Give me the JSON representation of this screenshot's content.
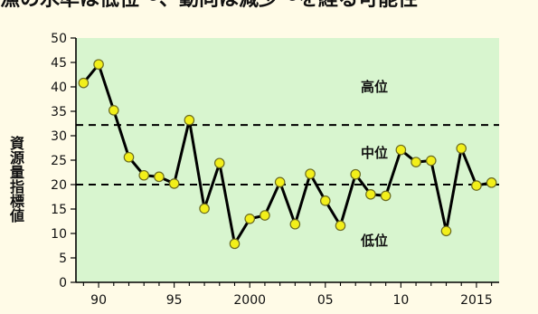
{
  "page": {
    "top_text": "漁の水準は低位～、動向は減少～を経る可能性"
  },
  "chart_data": {
    "type": "line",
    "title": "",
    "xlabel": "",
    "ylabel": "資源量指標値",
    "xlim": [
      1988.5,
      2016.5
    ],
    "ylim": [
      0,
      50
    ],
    "grid": false,
    "legend": "none",
    "x_ticks": [
      1990,
      1995,
      2000,
      2005,
      2010,
      2015
    ],
    "x_tick_labels": [
      "90",
      "95",
      "2000",
      "05",
      "10",
      "2015"
    ],
    "y_ticks": [
      0,
      5,
      10,
      15,
      20,
      25,
      30,
      35,
      40,
      45,
      50
    ],
    "y_tick_labels": [
      "0",
      "5",
      "10",
      "15",
      "20",
      "25",
      "30",
      "35",
      "40",
      "45",
      "50"
    ],
    "series": [
      {
        "x": [
          1989,
          1990,
          1991,
          1992,
          1993,
          1994,
          1995,
          1996,
          1997,
          1998,
          1999,
          2000,
          2001,
          2002,
          2003,
          2004,
          2005,
          2006,
          2007,
          2008,
          2009,
          2010,
          2011,
          2012,
          2013,
          2014,
          2015,
          2016
        ],
        "values": [
          40.8,
          44.6,
          35.2,
          25.6,
          21.9,
          21.6,
          20.2,
          33.2,
          15.1,
          24.4,
          7.9,
          13.0,
          13.7,
          20.5,
          11.9,
          22.2,
          16.7,
          11.6,
          22.1,
          18.0,
          17.7,
          27.1,
          24.6,
          24.9,
          10.5,
          27.4,
          19.8,
          20.4
        ]
      }
    ],
    "thresholds": [
      {
        "value": 32.2,
        "style": "dashed"
      },
      {
        "value": 20.0,
        "style": "dashed"
      }
    ],
    "zone_labels": [
      {
        "text": "高位",
        "value": 40.0
      },
      {
        "text": "中位",
        "value": 26.5
      },
      {
        "text": "低位",
        "value": 8.5
      }
    ],
    "colors": {
      "plot_background": "#d8f5cf",
      "line": "#000000",
      "marker_fill": "#f2ef1a",
      "marker_stroke": "#6b6b20"
    }
  }
}
